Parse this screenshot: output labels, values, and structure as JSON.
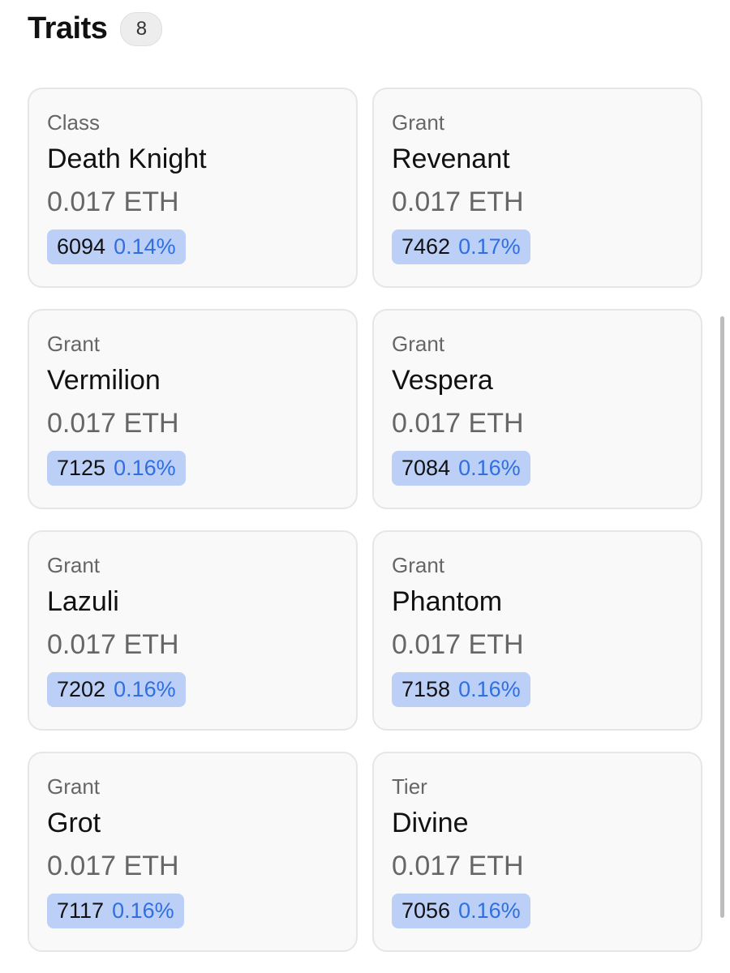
{
  "header": {
    "title": "Traits",
    "count": "8"
  },
  "traits": [
    {
      "type": "Class",
      "value": "Death Knight",
      "price": "0.017 ETH",
      "count": "6094",
      "percent": "0.14%"
    },
    {
      "type": "Grant",
      "value": "Revenant",
      "price": "0.017 ETH",
      "count": "7462",
      "percent": "0.17%"
    },
    {
      "type": "Grant",
      "value": "Vermilion",
      "price": "0.017 ETH",
      "count": "7125",
      "percent": "0.16%"
    },
    {
      "type": "Grant",
      "value": "Vespera",
      "price": "0.017 ETH",
      "count": "7084",
      "percent": "0.16%"
    },
    {
      "type": "Grant",
      "value": "Lazuli",
      "price": "0.017 ETH",
      "count": "7202",
      "percent": "0.16%"
    },
    {
      "type": "Grant",
      "value": "Phantom",
      "price": "0.017 ETH",
      "count": "7158",
      "percent": "0.16%"
    },
    {
      "type": "Grant",
      "value": "Grot",
      "price": "0.017 ETH",
      "count": "7117",
      "percent": "0.16%"
    },
    {
      "type": "Tier",
      "value": "Divine",
      "price": "0.017 ETH",
      "count": "7056",
      "percent": "0.16%"
    }
  ]
}
